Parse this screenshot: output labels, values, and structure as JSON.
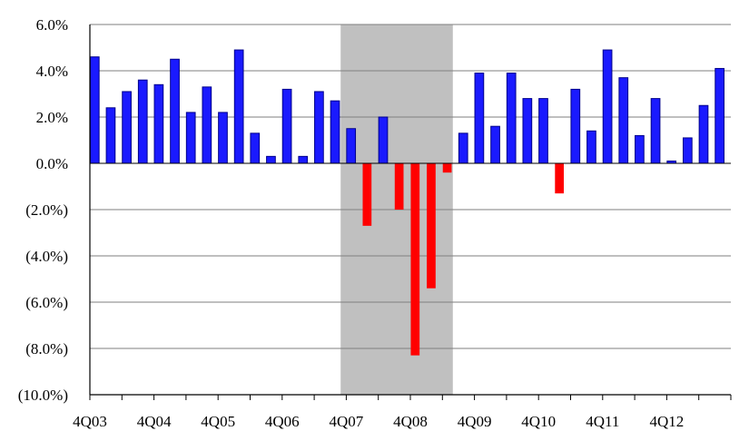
{
  "chart_data": {
    "type": "bar",
    "title": "",
    "xlabel": "",
    "ylabel": "",
    "ylim": [
      -10,
      6
    ],
    "y_ticks": [
      6,
      4,
      2,
      0,
      -2,
      -4,
      -6,
      -8,
      -10
    ],
    "y_tick_labels": [
      "6.0%",
      "4.0%",
      "2.0%",
      "0.0%",
      "(2.0%)",
      "(4.0%)",
      "(6.0%)",
      "(8.0%)",
      "(10.0%)"
    ],
    "x_tick_labels": [
      {
        "label": "4Q03",
        "index": 0
      },
      {
        "label": "4Q04",
        "index": 4
      },
      {
        "label": "4Q05",
        "index": 8
      },
      {
        "label": "4Q06",
        "index": 12
      },
      {
        "label": "4Q07",
        "index": 16
      },
      {
        "label": "4Q08",
        "index": 20
      },
      {
        "label": "4Q09",
        "index": 24
      },
      {
        "label": "4Q10",
        "index": 28
      },
      {
        "label": "4Q11",
        "index": 32
      },
      {
        "label": "4Q12",
        "index": 36
      }
    ],
    "recession_shading": {
      "from_index": 16,
      "to_index": 22,
      "color": "#c0c0c0"
    },
    "positive_color": "#1a1aff",
    "negative_color": "#ff0000",
    "grid": true,
    "legend": "none",
    "values": [
      4.6,
      2.4,
      3.1,
      3.6,
      3.4,
      4.5,
      2.2,
      3.3,
      2.2,
      4.9,
      1.3,
      0.3,
      3.2,
      0.3,
      3.1,
      2.7,
      1.5,
      -2.7,
      2.0,
      -2.0,
      -8.3,
      -5.4,
      -0.4,
      1.3,
      3.9,
      1.6,
      3.9,
      2.8,
      2.8,
      -1.3,
      3.2,
      1.4,
      4.9,
      3.7,
      1.2,
      2.8,
      0.1,
      1.1,
      2.5,
      4.1
    ]
  }
}
